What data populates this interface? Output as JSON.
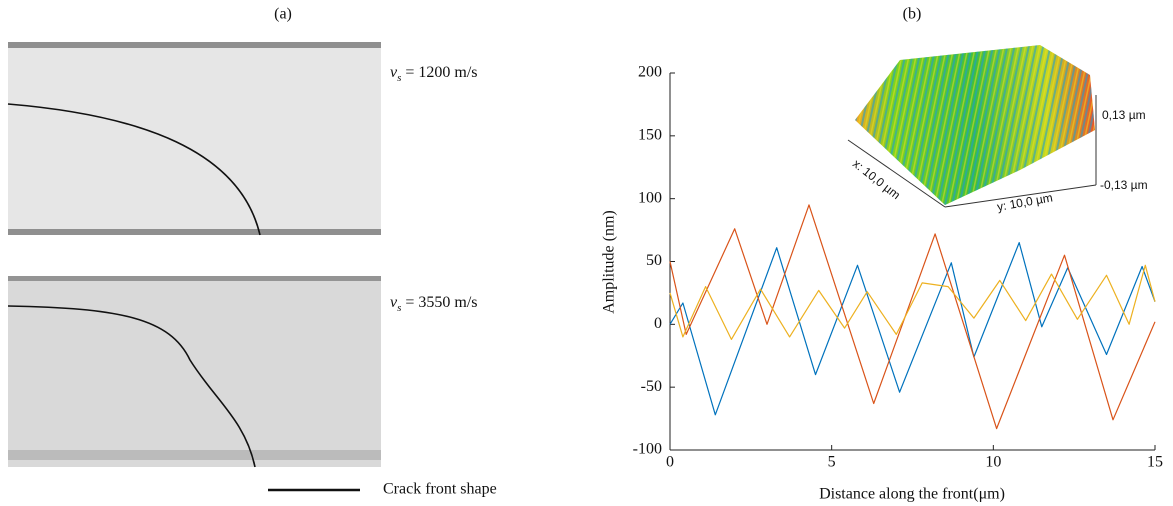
{
  "panel_a": {
    "label": "(a)",
    "top_speed": {
      "symbol": "v",
      "subscript": "s",
      "text": " = 1200 m/s"
    },
    "bottom_speed": {
      "symbol": "v",
      "subscript": "s",
      "text": " = 3550 m/s"
    },
    "legend": "Crack front shape"
  },
  "inset": {
    "z_top": "0,13 µm",
    "z_bottom": "-0,13 µm",
    "x_size": "x: 10,0 µm",
    "y_size": "y: 10,0 µm"
  },
  "chart_data": {
    "type": "line",
    "title": "(b)",
    "x_label": "Distance along the front(μm)",
    "y_label": "Amplitude (nm)",
    "xlim": [
      0,
      15
    ],
    "xticks": [
      0,
      5,
      10,
      15
    ],
    "ylim": [
      -100,
      200
    ],
    "yticks": [
      -100,
      -50,
      0,
      50,
      100,
      150,
      200
    ],
    "series": [
      {
        "color": "#0072bd",
        "x": [
          0,
          0.4,
          1.4,
          3.3,
          4.5,
          5.8,
          7.1,
          8.7,
          9.4,
          10.8,
          11.5,
          12.3,
          13.5,
          14.6,
          15
        ],
        "values": [
          0,
          17,
          -72,
          61,
          -40,
          47,
          -54,
          49,
          -26,
          65,
          -2,
          45,
          -24,
          46,
          18
        ]
      },
      {
        "color": "#d95319",
        "x": [
          0,
          0.5,
          2.0,
          3.0,
          4.3,
          6.3,
          8.2,
          10.1,
          12.2,
          13.7,
          15
        ],
        "values": [
          50,
          -8,
          76,
          0,
          95,
          -63,
          72,
          -83,
          55,
          -76,
          2
        ]
      },
      {
        "color": "#edb120",
        "x": [
          0,
          0.4,
          1.1,
          1.9,
          2.8,
          3.7,
          4.6,
          5.4,
          6.1,
          7.0,
          7.8,
          8.6,
          9.4,
          10.2,
          11.0,
          11.8,
          12.6,
          13.5,
          14.2,
          14.7,
          15
        ],
        "values": [
          25,
          -10,
          30,
          -12,
          28,
          -10,
          27,
          -3,
          26,
          -8,
          33,
          30,
          5,
          35,
          3,
          40,
          4,
          39,
          0,
          47,
          18
        ]
      }
    ]
  }
}
